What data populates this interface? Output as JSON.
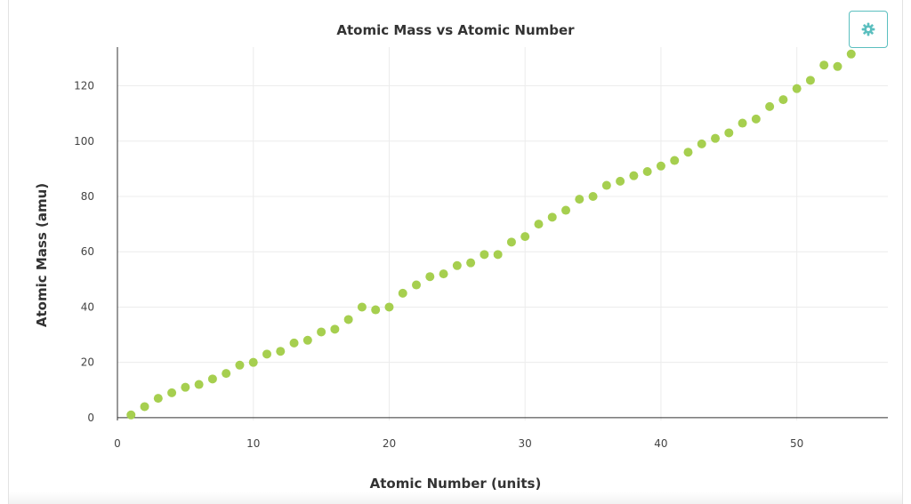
{
  "settings_button": {
    "icon": "gear-icon",
    "color": "#5bbfbf"
  },
  "chart_data": {
    "type": "scatter",
    "title": "Atomic Mass vs Atomic Number",
    "xlabel": "Atomic Number (units)",
    "ylabel": "Atomic Mass (amu)",
    "xlim": [
      0,
      56.7
    ],
    "ylim": [
      -1,
      134
    ],
    "x_ticks": [
      0,
      10,
      20,
      30,
      40,
      50
    ],
    "y_ticks": [
      0,
      20,
      40,
      60,
      80,
      100,
      120
    ],
    "grid": true,
    "marker_color": "#a6cf4f",
    "series": [
      {
        "x": [
          1,
          2,
          3,
          4,
          5,
          6,
          7,
          8,
          9,
          10,
          11,
          12,
          13,
          14,
          15,
          16,
          17,
          18,
          19,
          20,
          21,
          22,
          23,
          24,
          25,
          26,
          27,
          28,
          29,
          30,
          31,
          32,
          33,
          34,
          35,
          36,
          37,
          38,
          39,
          40,
          41,
          42,
          43,
          44,
          45,
          46,
          47,
          48,
          49,
          50,
          51,
          52,
          53,
          54
        ],
        "y": [
          1,
          4,
          7,
          9,
          11,
          12,
          14,
          16,
          19,
          20,
          23,
          24,
          27,
          28,
          31,
          32,
          35.5,
          40,
          39,
          40,
          45,
          48,
          51,
          52,
          55,
          56,
          59,
          59,
          63.5,
          65.5,
          70,
          72.5,
          75,
          79,
          80,
          84,
          85.5,
          87.5,
          89,
          91,
          93,
          96,
          99,
          101,
          103,
          106.5,
          108,
          112.5,
          115,
          119,
          122,
          127.5,
          127,
          131.5
        ]
      }
    ]
  }
}
